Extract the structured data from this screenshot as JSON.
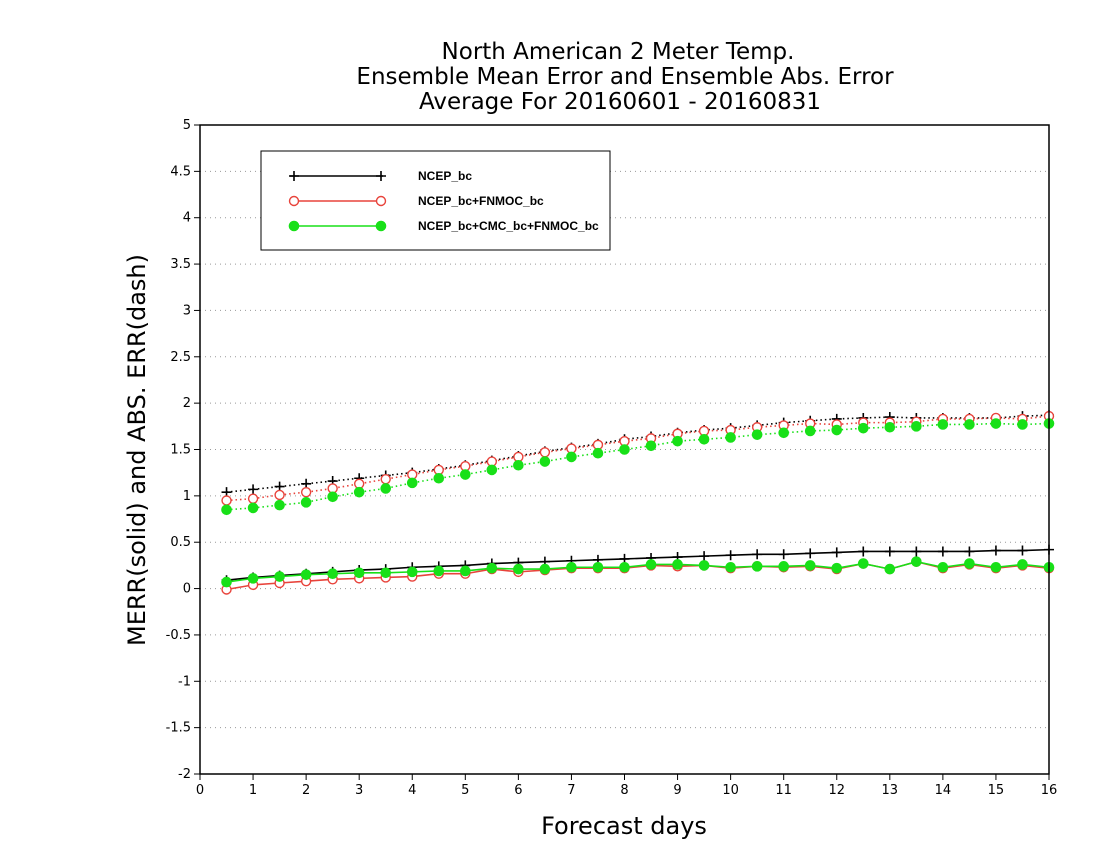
{
  "chart_data": {
    "type": "line",
    "title": [
      "North American 2 Meter Temp.",
      "Ensemble Mean Error and Ensemble Abs. Error",
      "Average For 20160601 - 20160831"
    ],
    "xlabel": "Forecast days",
    "ylabel": "MERR(solid) and ABS. ERR(dash)",
    "xlim": [
      0,
      16
    ],
    "ylim": [
      -2,
      5
    ],
    "xticks": [
      "0",
      "1",
      "2",
      "3",
      "4",
      "5",
      "6",
      "7",
      "8",
      "9",
      "10",
      "11",
      "12",
      "13",
      "14",
      "15",
      "16"
    ],
    "yticks": [
      "-2",
      "-1.5",
      "-1",
      "-0.5",
      "0",
      "0.5",
      "1",
      "1.5",
      "2",
      "2.5",
      "3",
      "3.5",
      "4",
      "4.5",
      "5"
    ],
    "grid": "horizontal-dotted",
    "legend_position": "top-left",
    "x": [
      0.5,
      1,
      1.5,
      2,
      2.5,
      3,
      3.5,
      4,
      4.5,
      5,
      5.5,
      6,
      6.5,
      7,
      7.5,
      8,
      8.5,
      9,
      9.5,
      10,
      10.5,
      11,
      11.5,
      12,
      12.5,
      13,
      13.5,
      14,
      14.5,
      15,
      15.5,
      16
    ],
    "series": [
      {
        "name": "NCEP_bc",
        "color": "#000000",
        "marker": "plus",
        "merr": [
          0.09,
          0.12,
          0.14,
          0.16,
          0.18,
          0.2,
          0.21,
          0.23,
          0.24,
          0.25,
          0.27,
          0.28,
          0.29,
          0.3,
          0.31,
          0.32,
          0.33,
          0.34,
          0.35,
          0.36,
          0.37,
          0.37,
          0.38,
          0.39,
          0.4,
          0.4,
          0.4,
          0.4,
          0.4,
          0.41,
          0.41,
          0.42
        ],
        "abs_err": [
          1.04,
          1.07,
          1.1,
          1.13,
          1.16,
          1.19,
          1.22,
          1.25,
          1.29,
          1.33,
          1.38,
          1.43,
          1.48,
          1.52,
          1.56,
          1.61,
          1.64,
          1.68,
          1.71,
          1.73,
          1.76,
          1.79,
          1.81,
          1.83,
          1.84,
          1.85,
          1.84,
          1.84,
          1.84,
          1.84,
          1.86,
          1.87
        ]
      },
      {
        "name": "NCEP_bc+FNMOC_bc",
        "color": "#e8433b",
        "marker": "open-circle",
        "merr": [
          -0.01,
          0.04,
          0.06,
          0.08,
          0.1,
          0.11,
          0.12,
          0.13,
          0.16,
          0.16,
          0.21,
          0.18,
          0.2,
          0.22,
          0.22,
          0.22,
          0.25,
          0.24,
          0.25,
          0.22,
          0.24,
          0.23,
          0.24,
          0.21,
          0.27,
          0.21,
          0.29,
          0.22,
          0.26,
          0.22,
          0.25,
          0.22
        ],
        "abs_err": [
          0.95,
          0.97,
          1.01,
          1.04,
          1.08,
          1.13,
          1.18,
          1.23,
          1.28,
          1.32,
          1.37,
          1.42,
          1.47,
          1.51,
          1.55,
          1.59,
          1.62,
          1.67,
          1.7,
          1.71,
          1.74,
          1.76,
          1.78,
          1.77,
          1.79,
          1.79,
          1.8,
          1.83,
          1.83,
          1.84,
          1.83,
          1.86
        ]
      },
      {
        "name": "NCEP_bc+CMC_bc+FNMOC_bc",
        "color": "#18e018",
        "marker": "filled-circle",
        "merr": [
          0.07,
          0.11,
          0.13,
          0.15,
          0.16,
          0.17,
          0.17,
          0.18,
          0.19,
          0.19,
          0.22,
          0.21,
          0.21,
          0.23,
          0.23,
          0.23,
          0.26,
          0.26,
          0.25,
          0.23,
          0.24,
          0.24,
          0.25,
          0.22,
          0.27,
          0.21,
          0.29,
          0.23,
          0.27,
          0.23,
          0.26,
          0.23
        ],
        "abs_err": [
          0.85,
          0.87,
          0.9,
          0.93,
          0.99,
          1.04,
          1.08,
          1.14,
          1.19,
          1.23,
          1.28,
          1.33,
          1.37,
          1.42,
          1.46,
          1.5,
          1.54,
          1.59,
          1.61,
          1.63,
          1.66,
          1.68,
          1.7,
          1.71,
          1.73,
          1.74,
          1.75,
          1.77,
          1.77,
          1.78,
          1.77,
          1.78
        ]
      }
    ]
  }
}
